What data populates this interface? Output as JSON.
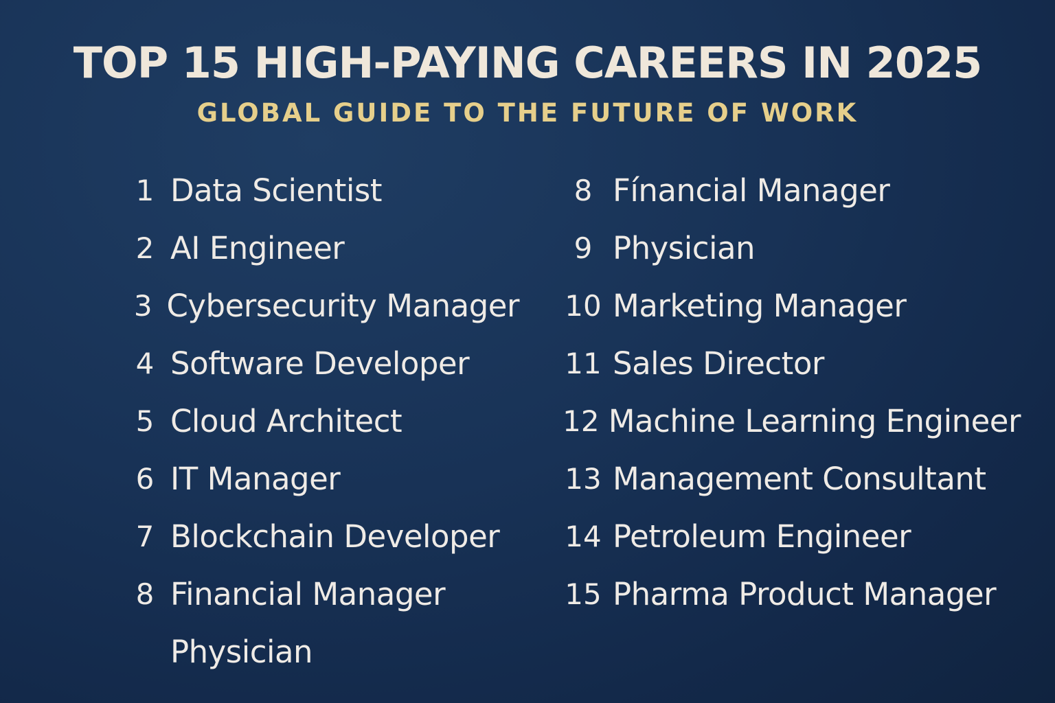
{
  "title": "TOP 15 HIGH-PAYING CAREERS IN 2025",
  "subtitle": "GLOBAL GUIDE TO THE FUTURE OF WORK",
  "colors": {
    "background": "#183256",
    "title": "#efe7da",
    "subtitle": "#e6cf8b",
    "text": "#efebe6"
  },
  "left_list": [
    {
      "number": "1",
      "label": "Data Scientist"
    },
    {
      "number": "2",
      "label": "AI Engineer"
    },
    {
      "number": "3",
      "label": "Cybersecurity Manager"
    },
    {
      "number": "4",
      "label": "Software Developer"
    },
    {
      "number": "5",
      "label": "Cloud Architect"
    },
    {
      "number": "6",
      "label": "IT Manager"
    },
    {
      "number": "7",
      "label": "Blockchain Developer"
    },
    {
      "number": "8",
      "label": "Financial Manager"
    },
    {
      "number": "",
      "label": "Physician"
    }
  ],
  "right_list": [
    {
      "number": "8",
      "label": "Fínancial Manager"
    },
    {
      "number": "9",
      "label": "Physician"
    },
    {
      "number": "10",
      "label": "Marketing Manager"
    },
    {
      "number": "11",
      "label": "Sales Director"
    },
    {
      "number": "12",
      "label": "Machine Learning Engineer"
    },
    {
      "number": "13",
      "label": "Management Consultant"
    },
    {
      "number": "14",
      "label": "Petroleum Engineer"
    },
    {
      "number": "15",
      "label": "Pharma Product Manager"
    }
  ]
}
